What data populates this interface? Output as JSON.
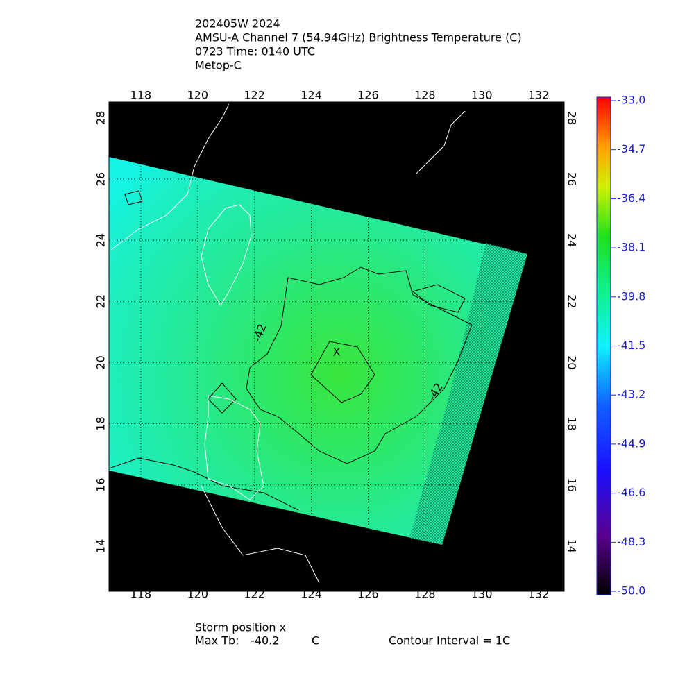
{
  "header": {
    "lines": [
      "202405W 2024",
      "AMSU-A Channel 7 (54.94GHz) Brightness Temperature (C)",
      "0723 Time: 0140 UTC",
      "Metop-C"
    ]
  },
  "map": {
    "lonlim": [
      116.88,
      132.9
    ],
    "latlim": [
      12.52,
      28.52
    ],
    "lon_ticks": [
      118,
      120,
      122,
      124,
      126,
      128,
      130,
      132
    ],
    "lat_ticks": [
      14,
      16,
      18,
      20,
      22,
      24,
      26,
      28
    ],
    "contour_labels": [
      "-42",
      "-42"
    ],
    "storm_marker": "X"
  },
  "colorbar": {
    "lim": [
      -50,
      -33
    ],
    "ticks": [
      {
        "value": -33,
        "label": "-33.0"
      },
      {
        "value": -34.7,
        "label": "-34.7"
      },
      {
        "value": -36.4,
        "label": "-36.4"
      },
      {
        "value": -38.1,
        "label": "-38.1"
      },
      {
        "value": -39.8,
        "label": "-39.8"
      },
      {
        "value": -41.5,
        "label": "-41.5"
      },
      {
        "value": -43.2,
        "label": "-43.2"
      },
      {
        "value": -44.9,
        "label": "-44.9"
      },
      {
        "value": -46.6,
        "label": "-46.6"
      },
      {
        "value": -48.3,
        "label": "-48.3"
      },
      {
        "value": -50,
        "label": "-50.0"
      }
    ]
  },
  "footer": {
    "storm_position": "Storm position x",
    "max_tb_label": "Max Tb:",
    "max_tb": -40.2,
    "max_tb_unit": "C",
    "contour_interval": "Contour Interval = 1C"
  }
}
